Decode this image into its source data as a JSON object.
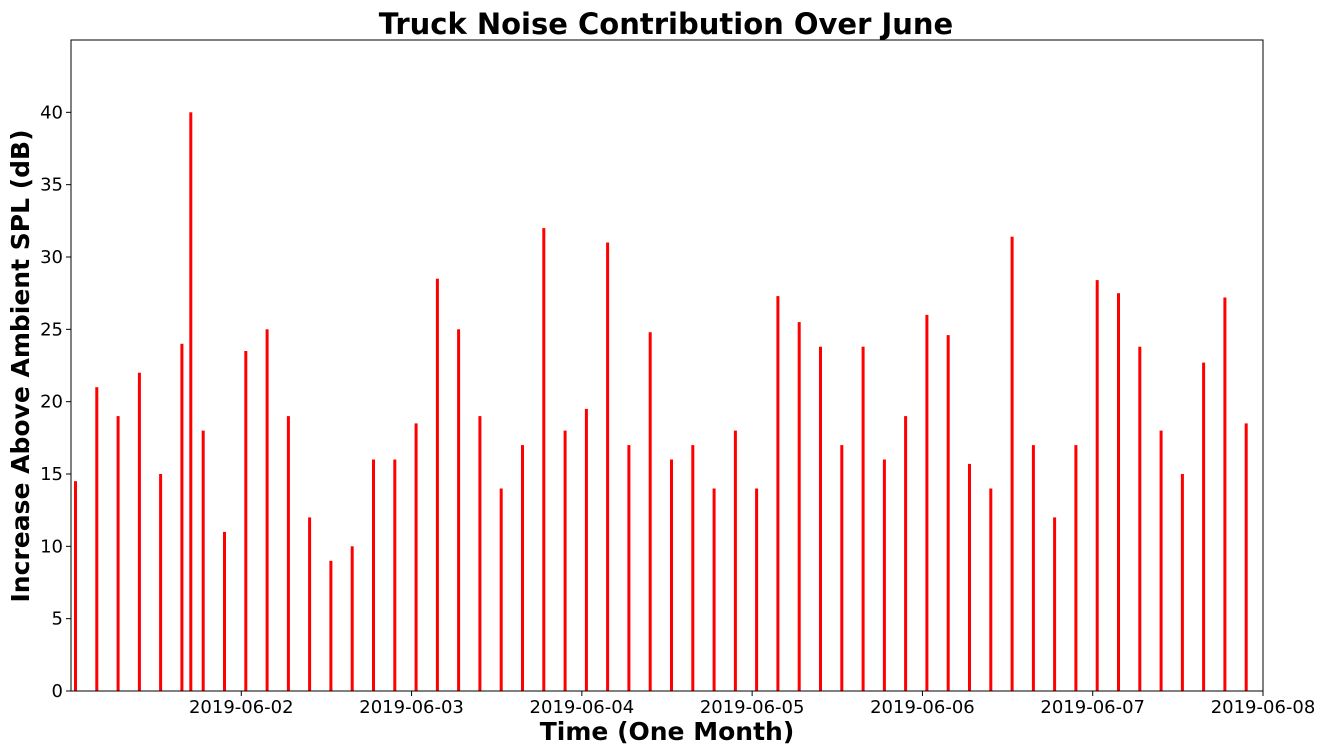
{
  "chart_data": {
    "type": "bar",
    "title": "Truck Noise Contribution Over June",
    "xlabel": "Time (One Month)",
    "ylabel": "Increase Above Ambient SPL (dB)",
    "x_range": [
      "2019-06-01 00:00",
      "2019-06-08 00:00"
    ],
    "ylim": [
      0,
      45
    ],
    "yticks": [
      "0",
      "5",
      "10",
      "15",
      "20",
      "25",
      "30",
      "35",
      "40"
    ],
    "xticks": [
      "2019-06-02",
      "2019-06-03",
      "2019-06-04",
      "2019-06-05",
      "2019-06-06",
      "2019-06-07",
      "2019-06-08"
    ],
    "grid": false,
    "color": "#ff0000",
    "series": [
      {
        "x": [
          "2019-06-01 00:00",
          "2019-06-01 03:00",
          "2019-06-01 06:00",
          "2019-06-01 09:00",
          "2019-06-01 12:00",
          "2019-06-01 15:00",
          "2019-06-01 16:15",
          "2019-06-01 18:00",
          "2019-06-01 21:00",
          "2019-06-02 00:00",
          "2019-06-02 03:00",
          "2019-06-02 06:00",
          "2019-06-02 09:00",
          "2019-06-02 12:00",
          "2019-06-02 15:00",
          "2019-06-02 18:00",
          "2019-06-02 21:00",
          "2019-06-03 00:00",
          "2019-06-03 03:00",
          "2019-06-03 06:00",
          "2019-06-03 09:00",
          "2019-06-03 12:00",
          "2019-06-03 15:00",
          "2019-06-03 18:00",
          "2019-06-03 21:00",
          "2019-06-04 00:00",
          "2019-06-04 03:00",
          "2019-06-04 06:00",
          "2019-06-04 09:00",
          "2019-06-04 12:00",
          "2019-06-04 15:00",
          "2019-06-04 18:00",
          "2019-06-04 21:00",
          "2019-06-05 00:00",
          "2019-06-05 03:00",
          "2019-06-05 06:00",
          "2019-06-05 09:00",
          "2019-06-05 12:00",
          "2019-06-05 15:00",
          "2019-06-05 18:00",
          "2019-06-05 21:00",
          "2019-06-06 00:00",
          "2019-06-06 03:00",
          "2019-06-06 06:00",
          "2019-06-06 09:00",
          "2019-06-06 12:00",
          "2019-06-06 15:00",
          "2019-06-06 18:00",
          "2019-06-06 21:00",
          "2019-06-07 00:00",
          "2019-06-07 03:00",
          "2019-06-07 06:00",
          "2019-06-07 09:00",
          "2019-06-07 12:00",
          "2019-06-07 15:00",
          "2019-06-07 18:00",
          "2019-06-07 21:00"
        ],
        "values": [
          14.5,
          21,
          19,
          22,
          15,
          24,
          40,
          18,
          11,
          23.5,
          25,
          19,
          12,
          9,
          10,
          16,
          16,
          18.5,
          28.5,
          25,
          19,
          14,
          17,
          32,
          18,
          19.5,
          31,
          17,
          24.8,
          16,
          17,
          14,
          18,
          14,
          27.3,
          25.5,
          23.8,
          17,
          23.8,
          16,
          19,
          26,
          24.6,
          15.7,
          14,
          31.4,
          17,
          12,
          17,
          28.4,
          27.5,
          23.8,
          18,
          15,
          22.7,
          27.2,
          18.5
        ]
      }
    ]
  }
}
